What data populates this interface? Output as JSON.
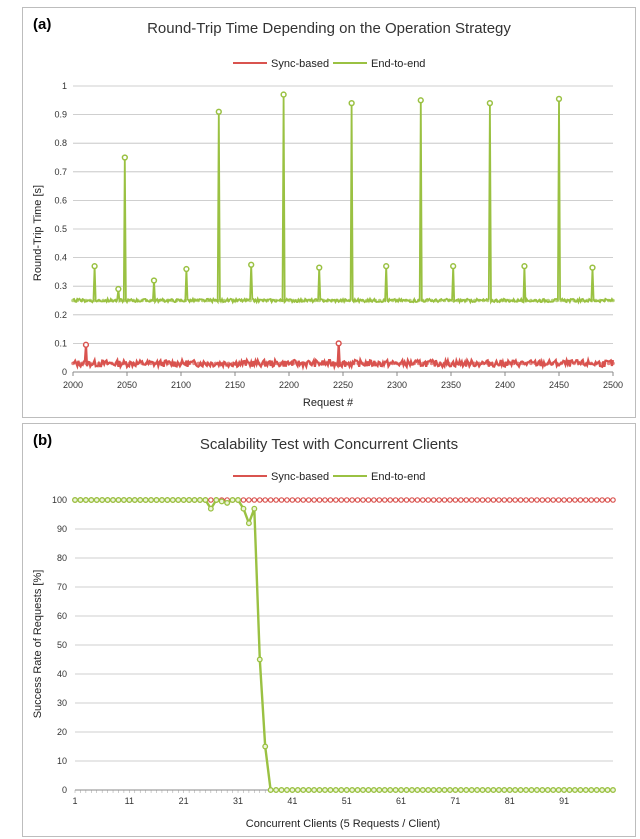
{
  "chart_data": [
    {
      "panel_label": "(a)",
      "type": "line",
      "title": "Round-Trip Time Depending on the Operation Strategy",
      "xlabel": "Request #",
      "ylabel": "Round-Trip Time [s]",
      "xlim": [
        2000,
        2500
      ],
      "ylim": [
        0,
        1
      ],
      "x_ticks": [
        "2000",
        "2050",
        "2100",
        "2150",
        "2200",
        "2250",
        "2300",
        "2350",
        "2400",
        "2450",
        "2500"
      ],
      "y_ticks": [
        "0",
        "0.1",
        "0.2",
        "0.3",
        "0.4",
        "0.5",
        "0.6",
        "0.7",
        "0.8",
        "0.9",
        "1"
      ],
      "legend": "top-center",
      "grid": true,
      "series": [
        {
          "name": "Sync-based",
          "color": "#d9534f",
          "baseline": 0.03,
          "spikes": [
            {
              "x": 2012,
              "y": 0.095
            },
            {
              "x": 2246,
              "y": 0.1
            }
          ]
        },
        {
          "name": "End-to-end",
          "color": "#9ac142",
          "baseline": 0.25,
          "spikes": [
            {
              "x": 2020,
              "y": 0.37
            },
            {
              "x": 2042,
              "y": 0.29
            },
            {
              "x": 2048,
              "y": 0.75
            },
            {
              "x": 2075,
              "y": 0.32
            },
            {
              "x": 2105,
              "y": 0.36
            },
            {
              "x": 2135,
              "y": 0.91
            },
            {
              "x": 2165,
              "y": 0.375
            },
            {
              "x": 2195,
              "y": 0.97
            },
            {
              "x": 2228,
              "y": 0.365
            },
            {
              "x": 2258,
              "y": 0.94
            },
            {
              "x": 2290,
              "y": 0.37
            },
            {
              "x": 2322,
              "y": 0.95
            },
            {
              "x": 2352,
              "y": 0.37
            },
            {
              "x": 2386,
              "y": 0.94
            },
            {
              "x": 2418,
              "y": 0.37
            },
            {
              "x": 2450,
              "y": 0.955
            },
            {
              "x": 2481,
              "y": 0.365
            }
          ]
        }
      ]
    },
    {
      "panel_label": "(b)",
      "type": "line",
      "title": "Scalability Test with Concurrent Clients",
      "xlabel": "Concurrent Clients (5 Requests / Client)",
      "ylabel": "Success Rate of Requests [%]",
      "xlim": [
        1,
        100
      ],
      "ylim": [
        0,
        100
      ],
      "x_ticks": [
        "1",
        "11",
        "21",
        "31",
        "41",
        "51",
        "61",
        "71",
        "81",
        "91"
      ],
      "y_ticks": [
        "0",
        "10",
        "20",
        "30",
        "40",
        "50",
        "60",
        "70",
        "80",
        "90",
        "100"
      ],
      "legend": "top-center",
      "grid": true,
      "series": [
        {
          "name": "Sync-based",
          "color": "#d9534f",
          "constant": 100
        },
        {
          "name": "End-to-end",
          "color": "#9ac142",
          "points": [
            {
              "x": 1,
              "y": 100
            },
            {
              "x": 25,
              "y": 100
            },
            {
              "x": 26,
              "y": 97
            },
            {
              "x": 27,
              "y": 100
            },
            {
              "x": 29,
              "y": 99
            },
            {
              "x": 30,
              "y": 100
            },
            {
              "x": 31,
              "y": 100
            },
            {
              "x": 32,
              "y": 97
            },
            {
              "x": 33,
              "y": 92
            },
            {
              "x": 34,
              "y": 97
            },
            {
              "x": 35,
              "y": 45
            },
            {
              "x": 36,
              "y": 15
            },
            {
              "x": 37,
              "y": 0
            },
            {
              "x": 100,
              "y": 0
            }
          ]
        }
      ]
    }
  ]
}
